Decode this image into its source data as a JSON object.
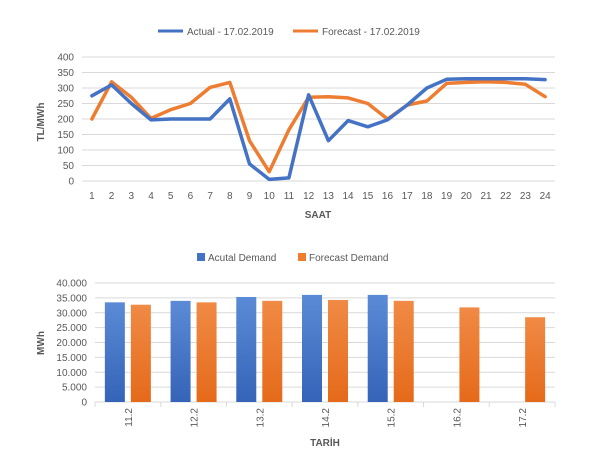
{
  "colors": {
    "blue": "#4472C4",
    "orange": "#ED7D31",
    "grid": "#D9D9D9",
    "text": "#595959"
  },
  "chart_data": [
    {
      "type": "line",
      "title": "",
      "xlabel": "SAAT",
      "ylabel": "TL/MWh",
      "ylim": [
        0,
        400
      ],
      "yticks": [
        "0",
        "50",
        "100",
        "150",
        "200",
        "250",
        "300",
        "350",
        "400"
      ],
      "x": [
        "1",
        "2",
        "3",
        "4",
        "5",
        "6",
        "7",
        "8",
        "9",
        "10",
        "11",
        "12",
        "13",
        "14",
        "15",
        "16",
        "17",
        "18",
        "19",
        "20",
        "21",
        "22",
        "23",
        "24"
      ],
      "grid": true,
      "legend_position": "top",
      "series": [
        {
          "name": "Actual - 17.02.2019",
          "color": "#4472C4",
          "values": [
            275,
            310,
            250,
            197,
            200,
            200,
            200,
            265,
            55,
            5,
            10,
            278,
            130,
            195,
            175,
            197,
            245,
            300,
            328,
            330,
            330,
            330,
            330,
            327
          ]
        },
        {
          "name": "Forecast - 17.02.2019",
          "color": "#ED7D31",
          "values": [
            200,
            320,
            270,
            202,
            230,
            250,
            302,
            318,
            130,
            30,
            165,
            270,
            272,
            268,
            250,
            200,
            245,
            258,
            315,
            318,
            320,
            318,
            312,
            272
          ]
        }
      ]
    },
    {
      "type": "bar",
      "title": "",
      "xlabel": "TARİH",
      "ylabel": "MWh",
      "ylim": [
        0,
        40000
      ],
      "yticks": [
        "0",
        "5.000",
        "10.000",
        "15.000",
        "20.000",
        "25.000",
        "30.000",
        "35.000",
        "40.000"
      ],
      "categories": [
        "11.2",
        "12.2",
        "13.2",
        "14.2",
        "15.2",
        "16.2",
        "17.2"
      ],
      "grid": true,
      "legend_position": "top",
      "series": [
        {
          "name": "Acutal Demand",
          "color": "#4472C4",
          "values": [
            33500,
            34000,
            35300,
            36000,
            36000,
            null,
            null
          ]
        },
        {
          "name": "Forecast Demand",
          "color": "#ED7D31",
          "values": [
            32700,
            33500,
            34000,
            34300,
            34000,
            31800,
            28500
          ]
        }
      ]
    }
  ]
}
